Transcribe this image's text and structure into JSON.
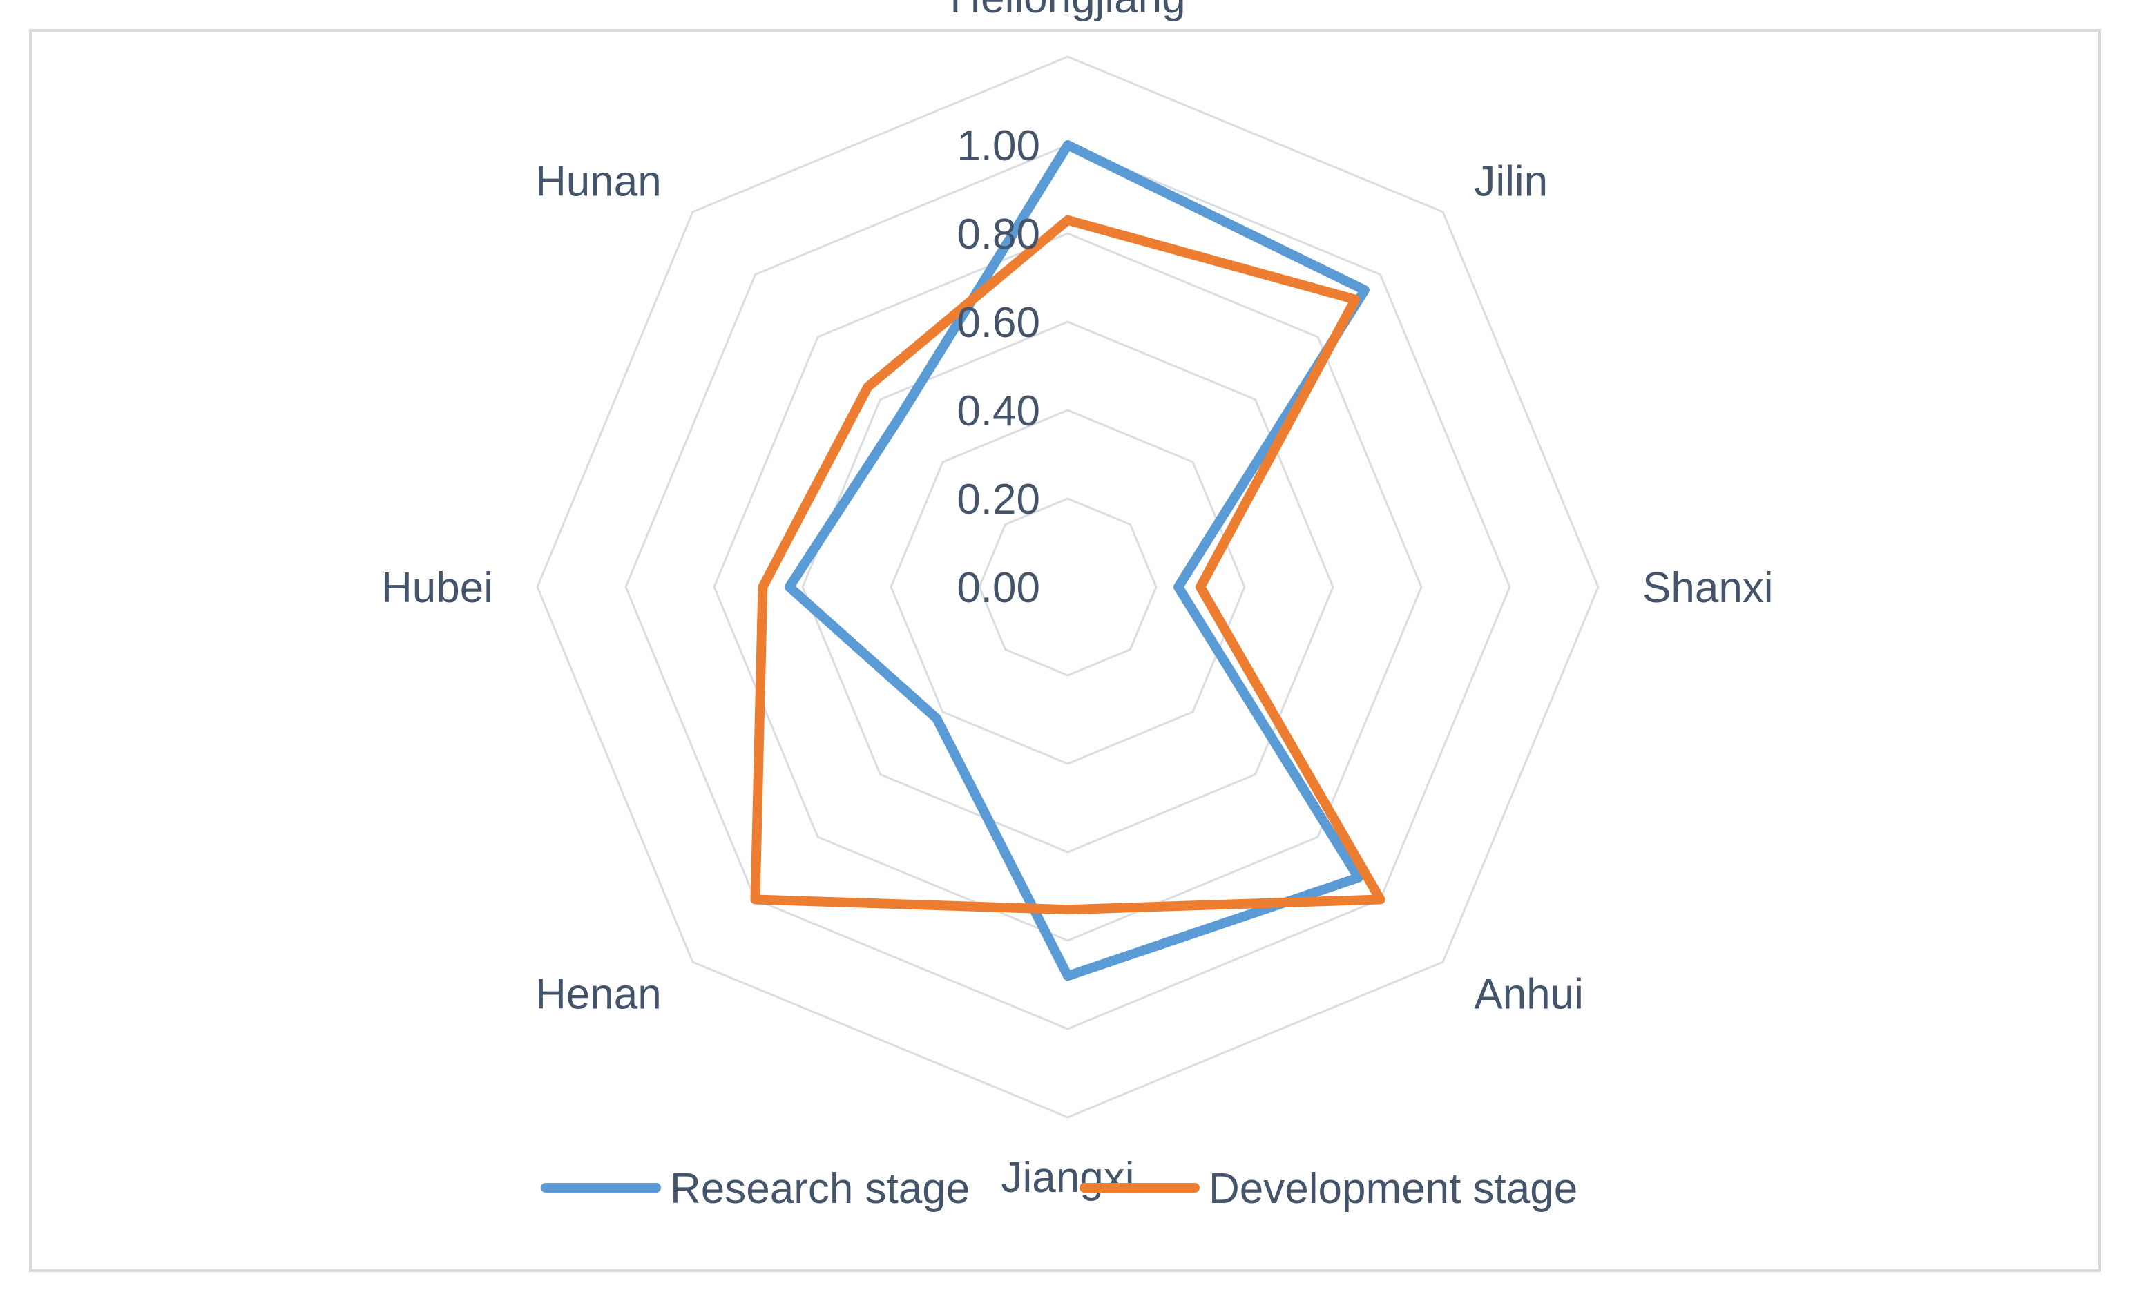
{
  "chart_data": {
    "type": "radar",
    "categories": [
      "Heilongjiang",
      "Jilin",
      "Shanxi",
      "Anhui",
      "Jiangxi",
      "Henan",
      "Hubei",
      "Hunan"
    ],
    "rlim": [
      0,
      1
    ],
    "ticks": [
      "0.00",
      "0.20",
      "0.40",
      "0.60",
      "0.80",
      "1.00"
    ],
    "tick_values": [
      0,
      0.2,
      0.4,
      0.6,
      0.8,
      1.0
    ],
    "series": [
      {
        "name": "Research stage",
        "color": "#5b9bd5",
        "values": [
          1.0,
          0.95,
          0.25,
          0.93,
          0.88,
          0.42,
          0.63,
          0.54
        ]
      },
      {
        "name": "Development stage",
        "color": "#ed7d31",
        "values": [
          0.83,
          0.92,
          0.3,
          1.0,
          0.73,
          1.0,
          0.69,
          0.64
        ]
      }
    ],
    "grid_color": "#d9dde5",
    "legend_position": "bottom"
  }
}
